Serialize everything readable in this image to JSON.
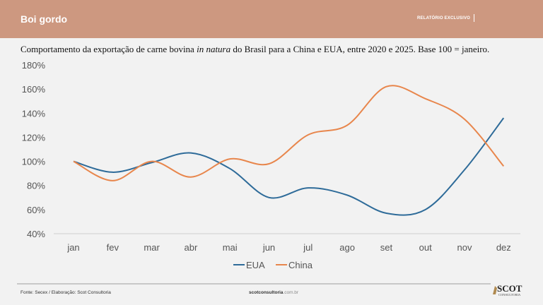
{
  "header": {
    "title": "Boi gordo",
    "tag": "RELATÓRIO EXCLUSIVO"
  },
  "subtitle": {
    "part1": "Comportamento da exportação de carne bovina ",
    "italic": "in natura",
    "part2": " do Brasil para a China e EUA, entre 2020 e 2025. Base 100 = janeiro."
  },
  "footer": {
    "source": "Fonte: Secex / Elaboração: Scot Consultoria",
    "site_bold": "scotconsultoria",
    "site_rest": ".com.br",
    "logo_text": "SCOT",
    "logo_sub": "CONSULTORIA"
  },
  "chart_data": {
    "type": "line",
    "title": "",
    "xlabel": "",
    "ylabel": "",
    "categories": [
      "jan",
      "fev",
      "mar",
      "abr",
      "mai",
      "jun",
      "jul",
      "ago",
      "set",
      "out",
      "nov",
      "dez"
    ],
    "ylim": [
      40,
      180
    ],
    "yticks": [
      40,
      60,
      80,
      100,
      120,
      140,
      160,
      180
    ],
    "ytick_labels": [
      "40%",
      "60%",
      "80%",
      "100%",
      "120%",
      "140%",
      "160%",
      "180%"
    ],
    "grid": false,
    "legend": "bottom",
    "series": [
      {
        "name": "EUA",
        "color": "#2e6b99",
        "values": [
          100,
          91,
          99,
          107,
          94,
          70,
          78,
          72,
          57,
          60,
          93,
          136
        ]
      },
      {
        "name": "China",
        "color": "#e8864c",
        "values": [
          100,
          84,
          100,
          87,
          102,
          98,
          122,
          130,
          162,
          152,
          135,
          96
        ]
      }
    ]
  }
}
